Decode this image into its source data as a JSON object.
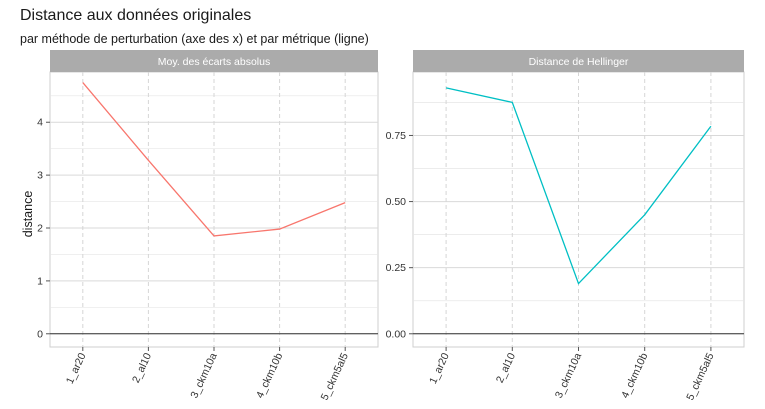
{
  "title": "Distance aux données originales",
  "subtitle": "par méthode de perturbation (axe des x) et par métrique (ligne)",
  "chart_data": [
    {
      "type": "line",
      "panel_title": "Moy. des écarts absolus",
      "ylabel": "distance",
      "categories": [
        "1_ar20",
        "2_al10",
        "3_ckm10a",
        "4_ckm10b",
        "5_ckm5al5"
      ],
      "series": [
        {
          "values": [
            4.75,
            3.28,
            1.85,
            1.98,
            2.48
          ],
          "color": "#f8766d"
        }
      ],
      "ylim": [
        -0.25,
        4.95
      ],
      "yticks": [
        0,
        1,
        2,
        3,
        4
      ],
      "ytick_labels": [
        "0",
        "1",
        "2",
        "3",
        "4"
      ],
      "grid": true,
      "zero_line": true
    },
    {
      "type": "line",
      "panel_title": "Distance de Hellinger",
      "categories": [
        "1_ar20",
        "2_al10",
        "3_ckm10a",
        "4_ckm10b",
        "5_ckm5al5"
      ],
      "series": [
        {
          "values": [
            0.93,
            0.875,
            0.19,
            0.45,
            0.785
          ],
          "color": "#00bfc4"
        }
      ],
      "ylim": [
        -0.05,
        0.99
      ],
      "yticks": [
        0,
        0.25,
        0.5,
        0.75
      ],
      "ytick_labels": [
        "0.00",
        "0.25",
        "0.50",
        "0.75"
      ],
      "grid": true,
      "zero_line": true
    }
  ]
}
